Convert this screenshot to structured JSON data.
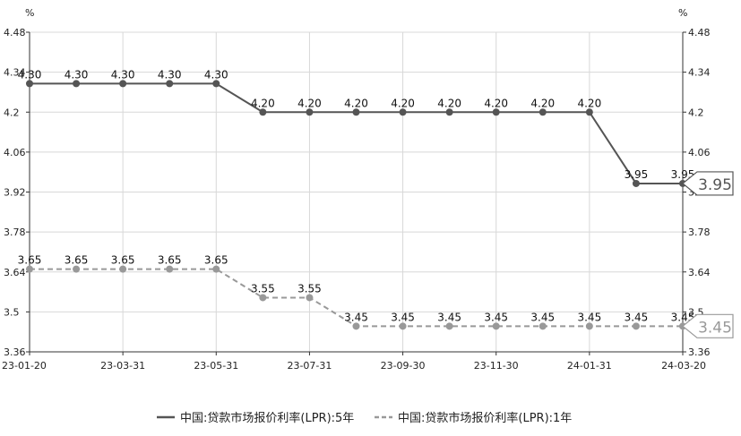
{
  "chart_data": {
    "type": "line",
    "y_unit": "%",
    "ylim": [
      3.36,
      4.48
    ],
    "yticks": [
      "4.48",
      "4.34",
      "4.2",
      "4.06",
      "3.92",
      "3.78",
      "3.64",
      "3.5",
      "3.36"
    ],
    "ytick_values": [
      4.48,
      4.34,
      4.2,
      4.06,
      3.92,
      3.78,
      3.64,
      3.5,
      3.36
    ],
    "x_tick_labels": [
      "23-01-20",
      "23-03-31",
      "23-05-31",
      "23-07-31",
      "23-09-30",
      "23-11-30",
      "24-01-31",
      "24-03-20"
    ],
    "x_tick_indices": [
      0,
      2,
      4,
      6,
      8,
      10,
      12,
      14
    ],
    "x": [
      "23-01-20",
      "23-02-20",
      "23-03-20",
      "23-04-20",
      "23-05-22",
      "23-06-20",
      "23-07-20",
      "23-08-21",
      "23-09-20",
      "23-10-20",
      "23-11-20",
      "23-12-20",
      "24-01-22",
      "24-02-20",
      "24-03-20"
    ],
    "series": [
      {
        "name": "中国:贷款市场报价利率(LPR):5年",
        "style": "solid",
        "color": "#555555",
        "values": [
          4.3,
          4.3,
          4.3,
          4.3,
          4.3,
          4.2,
          4.2,
          4.2,
          4.2,
          4.2,
          4.2,
          4.2,
          4.2,
          3.95,
          3.95
        ],
        "labels": [
          "4.30",
          "4.30",
          "4.30",
          "4.30",
          "4.30",
          "4.20",
          "4.20",
          "4.20",
          "4.20",
          "4.20",
          "4.20",
          "4.20",
          "4.20",
          "3.95",
          "3.95"
        ],
        "end_label": "3.95"
      },
      {
        "name": "中国:贷款市场报价利率(LPR):1年",
        "style": "dashed",
        "color": "#999999",
        "values": [
          3.65,
          3.65,
          3.65,
          3.65,
          3.65,
          3.55,
          3.55,
          3.45,
          3.45,
          3.45,
          3.45,
          3.45,
          3.45,
          3.45,
          3.45
        ],
        "labels": [
          "3.65",
          "3.65",
          "3.65",
          "3.65",
          "3.65",
          "3.55",
          "3.55",
          "3.45",
          "3.45",
          "3.45",
          "3.45",
          "3.45",
          "3.45",
          "3.45",
          "3.45"
        ],
        "end_label": "3.45"
      }
    ],
    "grid": true,
    "legend_position": "bottom"
  }
}
